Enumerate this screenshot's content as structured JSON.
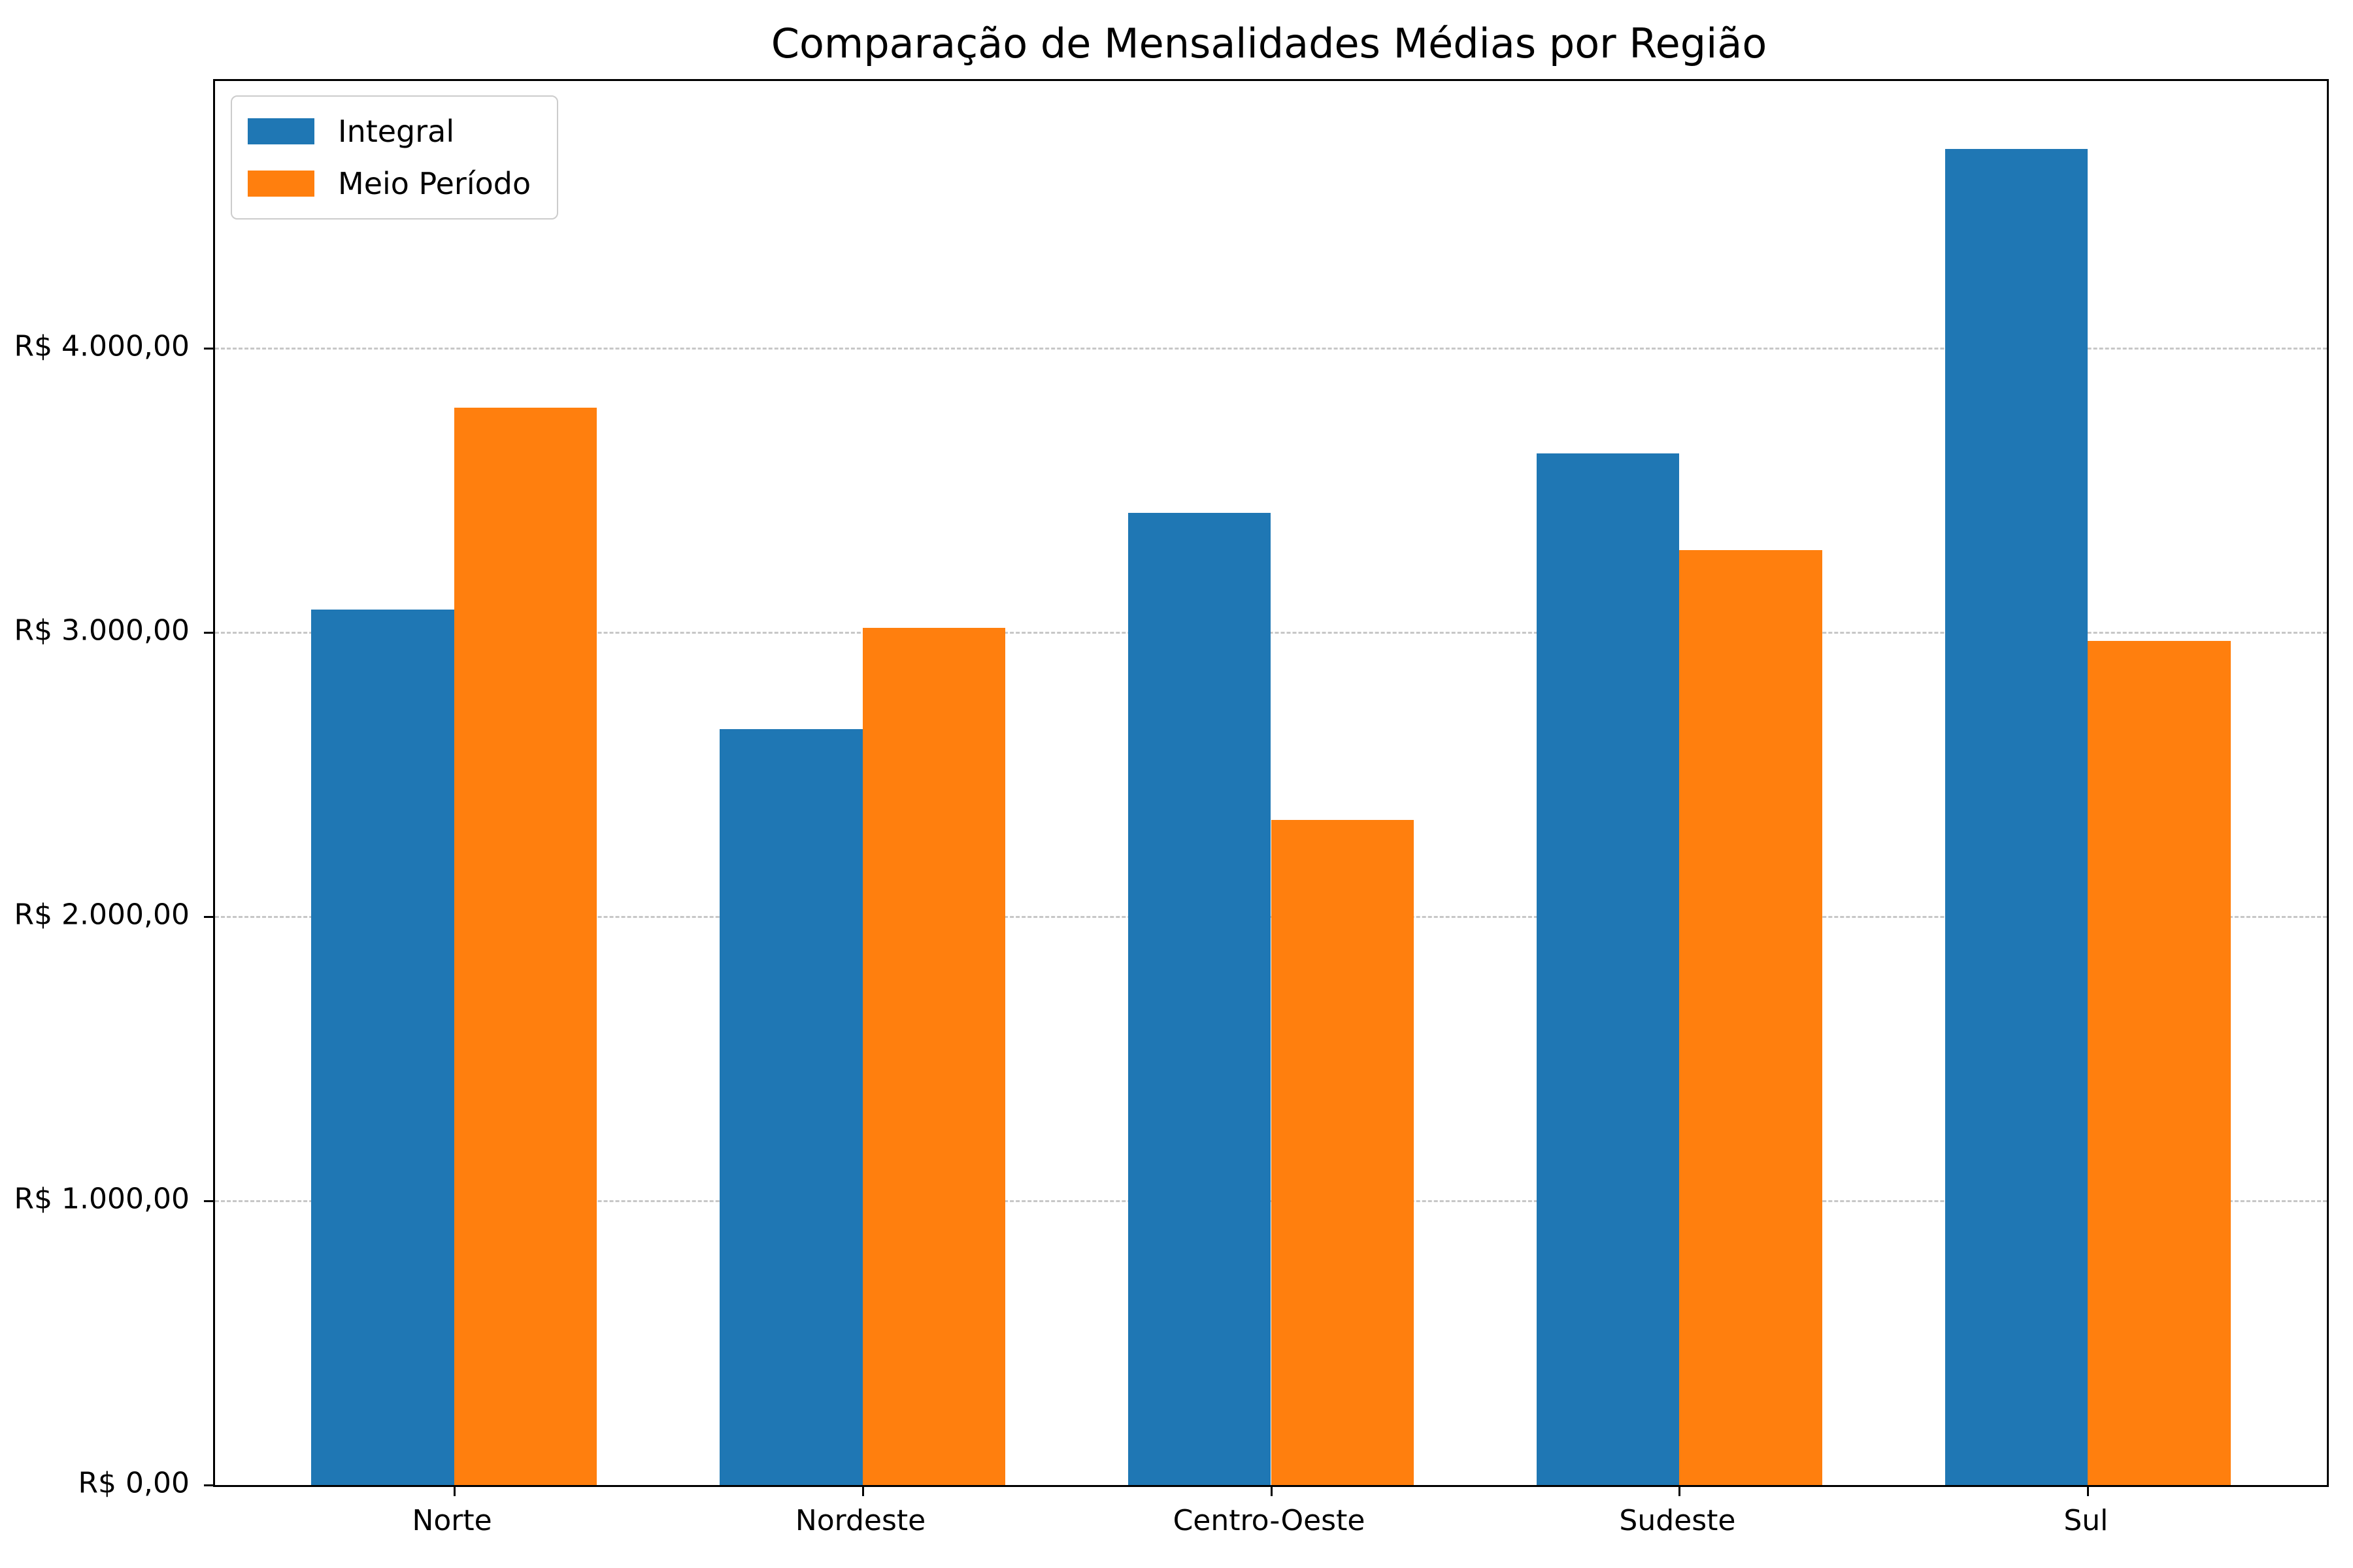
{
  "chart_data": {
    "type": "bar",
    "title": "Comparação de Mensalidades Médias por Região",
    "categories": [
      "Norte",
      "Nordeste",
      "Centro-Oeste",
      "Sudeste",
      "Sul"
    ],
    "series": [
      {
        "name": "Integral",
        "color": "#1f77b4",
        "values": [
          3080,
          2660,
          3420,
          3630,
          4700
        ]
      },
      {
        "name": "Meio Período",
        "color": "#ff7f0e",
        "values": [
          3790,
          3015,
          2340,
          3290,
          2970
        ]
      }
    ],
    "bar_width": 0.35,
    "ylim": [
      0,
      4940
    ],
    "yticks": [
      {
        "value": 0,
        "label": "R$ 0,00"
      },
      {
        "value": 1000,
        "label": "R$ 1.000,00"
      },
      {
        "value": 2000,
        "label": "R$ 2.000,00"
      },
      {
        "value": 3000,
        "label": "R$ 3.000,00"
      },
      {
        "value": 4000,
        "label": "R$ 4.000,00"
      }
    ],
    "grid": "horizontal-dashed",
    "grid_color": "#c7c7c7",
    "legend_position": "upper-left",
    "background_color": "#ffffff",
    "axis_color": "#000000"
  }
}
